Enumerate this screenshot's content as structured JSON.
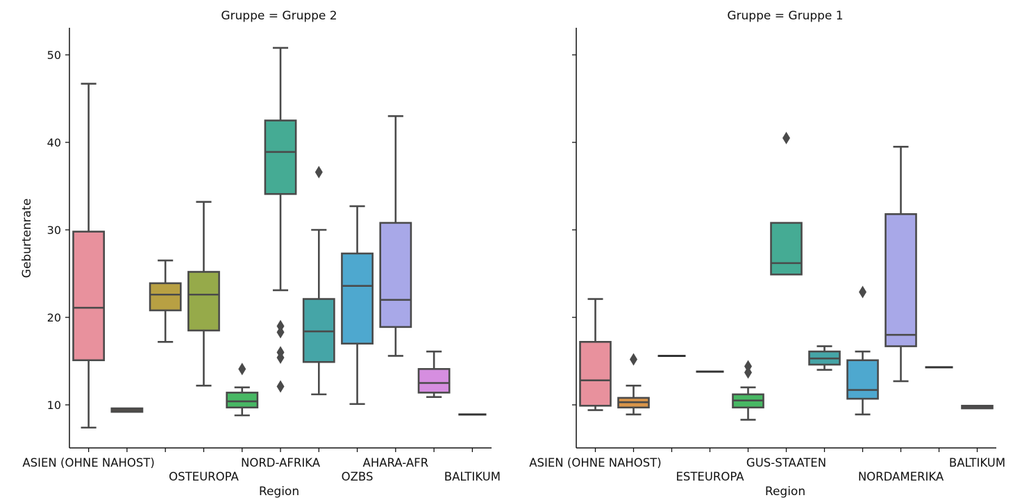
{
  "chart_data": {
    "type": "box",
    "ylabel": "Geburtenrate",
    "ylim": [
      4.8,
      53
    ],
    "yticks": [
      10,
      20,
      30,
      40,
      50
    ],
    "grid": false,
    "palette": [
      "#e8919d",
      "#d9954a",
      "#b8a043",
      "#96aa4a",
      "#48b864",
      "#45ab94",
      "#45a5a7",
      "#4ea8cf",
      "#a8a8e8",
      "#d68ee0",
      "#e48fbf"
    ],
    "panels": [
      {
        "title": "Gruppe = Gruppe 2",
        "xlabel": "Region",
        "tick_labels": [
          "ASIEN (OHNE NAHOST)",
          "",
          "",
          "OSTEUROPA",
          "",
          "NORD-AFRIKA",
          "",
          "OZBS",
          "AHARA-AFR",
          "",
          "BALTIKUM"
        ],
        "boxes": [
          {
            "whislo": 7.4,
            "q1": 15.1,
            "med": 21.1,
            "q3": 29.8,
            "whishi": 46.7,
            "fliers": []
          },
          {
            "whislo": 9.2,
            "q1": 9.2,
            "med": 9.4,
            "q3": 9.6,
            "whishi": 9.6,
            "fliers": []
          },
          {
            "whislo": 17.2,
            "q1": 20.8,
            "med": 22.6,
            "q3": 23.9,
            "whishi": 26.5,
            "fliers": []
          },
          {
            "whislo": 12.2,
            "q1": 18.5,
            "med": 22.6,
            "q3": 25.2,
            "whishi": 33.2,
            "fliers": []
          },
          {
            "whislo": 8.8,
            "q1": 9.7,
            "med": 10.4,
            "q3": 11.4,
            "whishi": 12.0,
            "fliers": [
              14.1
            ]
          },
          {
            "whislo": 23.1,
            "q1": 34.1,
            "med": 38.9,
            "q3": 42.5,
            "whishi": 50.8,
            "fliers": [
              19.0,
              18.3,
              16.0,
              15.4,
              12.1
            ]
          },
          {
            "whislo": 11.2,
            "q1": 14.9,
            "med": 18.4,
            "q3": 22.1,
            "whishi": 30.0,
            "fliers": [
              36.6
            ]
          },
          {
            "whislo": 10.1,
            "q1": 17.0,
            "med": 23.6,
            "q3": 27.3,
            "whishi": 32.7,
            "fliers": []
          },
          {
            "whislo": 15.6,
            "q1": 18.9,
            "med": 22.0,
            "q3": 30.8,
            "whishi": 43.0,
            "fliers": []
          },
          {
            "whislo": 10.9,
            "q1": 11.4,
            "med": 12.5,
            "q3": 14.1,
            "whishi": 16.1,
            "fliers": []
          },
          {
            "whislo": 8.9,
            "q1": 8.9,
            "med": 8.9,
            "q3": 8.9,
            "whishi": 8.9,
            "fliers": []
          }
        ]
      },
      {
        "title": "Gruppe = Gruppe 1",
        "xlabel": "Region",
        "tick_labels": [
          "ASIEN (OHNE NAHOST)",
          "",
          "",
          "ESTEUROPA",
          "",
          "GUS-STAATEN",
          "",
          "",
          "NORDAMERIKA",
          "",
          "BALTIKUM"
        ],
        "boxes": [
          {
            "whislo": 9.4,
            "q1": 9.9,
            "med": 12.8,
            "q3": 17.2,
            "whishi": 22.1,
            "fliers": []
          },
          {
            "whislo": 8.9,
            "q1": 9.7,
            "med": 10.3,
            "q3": 10.8,
            "whishi": 12.2,
            "fliers": [
              15.2
            ]
          },
          {
            "whislo": 15.6,
            "q1": 15.6,
            "med": 15.6,
            "q3": 15.6,
            "whishi": 15.6,
            "fliers": []
          },
          {
            "whislo": 13.8,
            "q1": 13.8,
            "med": 13.8,
            "q3": 13.8,
            "whishi": 13.8,
            "fliers": []
          },
          {
            "whislo": 8.3,
            "q1": 9.7,
            "med": 10.5,
            "q3": 11.2,
            "whishi": 12.0,
            "fliers": [
              13.7,
              14.4
            ]
          },
          {
            "whislo": 24.9,
            "q1": 24.9,
            "med": 26.2,
            "q3": 30.8,
            "whishi": 30.8,
            "fliers": [
              40.5
            ]
          },
          {
            "whislo": 14.0,
            "q1": 14.6,
            "med": 15.3,
            "q3": 16.1,
            "whishi": 16.7,
            "fliers": []
          },
          {
            "whislo": 8.9,
            "q1": 10.7,
            "med": 11.7,
            "q3": 15.1,
            "whishi": 16.1,
            "fliers": [
              22.9
            ]
          },
          {
            "whislo": 12.7,
            "q1": 16.7,
            "med": 18.0,
            "q3": 31.8,
            "whishi": 39.5,
            "fliers": []
          },
          {
            "whislo": 14.3,
            "q1": 14.3,
            "med": 14.3,
            "q3": 14.3,
            "whishi": 14.3,
            "fliers": []
          },
          {
            "whislo": 9.6,
            "q1": 9.6,
            "med": 9.8,
            "q3": 9.9,
            "whishi": 9.9,
            "fliers": []
          }
        ]
      }
    ]
  }
}
